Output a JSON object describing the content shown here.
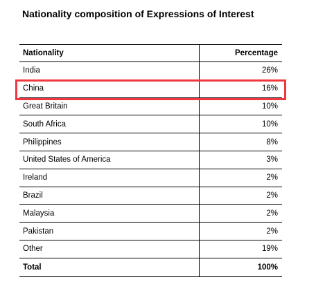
{
  "title": "Nationality composition of Expressions of Interest",
  "columns": {
    "nationality": "Nationality",
    "percentage": "Percentage"
  },
  "rows": [
    {
      "nationality": "India",
      "percentage": "26%"
    },
    {
      "nationality": "China",
      "percentage": "16%"
    },
    {
      "nationality": "Great Britain",
      "percentage": "10%"
    },
    {
      "nationality": "South Africa",
      "percentage": "10%"
    },
    {
      "nationality": "Philippines",
      "percentage": "8%"
    },
    {
      "nationality": "United States of America",
      "percentage": "3%"
    },
    {
      "nationality": "Ireland",
      "percentage": "2%"
    },
    {
      "nationality": "Brazil",
      "percentage": "2%"
    },
    {
      "nationality": "Malaysia",
      "percentage": "2%"
    },
    {
      "nationality": "Pakistan",
      "percentage": "2%"
    },
    {
      "nationality": "Other",
      "percentage": "19%"
    }
  ],
  "total": {
    "label": "Total",
    "percentage": "100%"
  },
  "highlighted_row": "China",
  "highlight_color": "#f0373d"
}
